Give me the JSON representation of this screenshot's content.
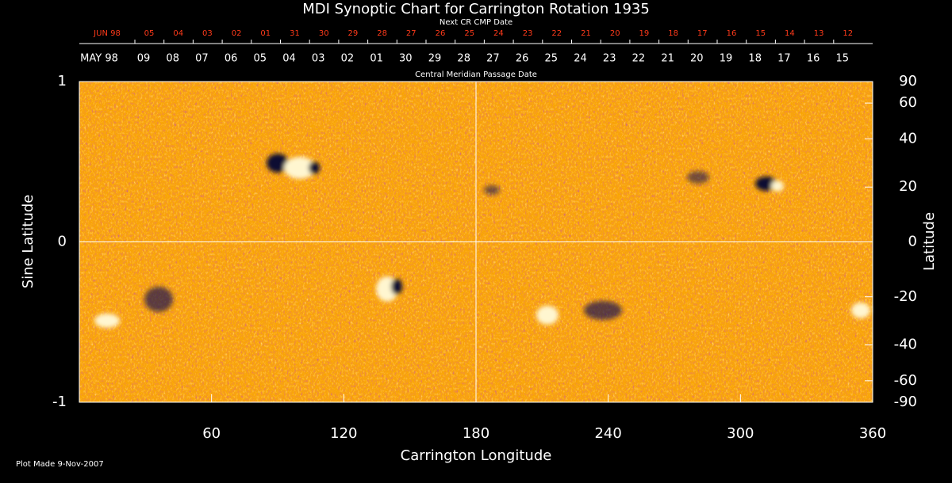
{
  "chart_data": {
    "type": "synoptic-map",
    "title": "MDI Synoptic Chart for Carrington Rotation 1935",
    "x_label": "Carrington Longitude",
    "xlim": [
      0,
      360
    ],
    "xticks": [
      60,
      120,
      180,
      240,
      300,
      360
    ],
    "y_label": "Sine Latitude",
    "ylim": [
      -1,
      1
    ],
    "yticks": [
      -1,
      0,
      1
    ],
    "y2_label": "Latitude",
    "y2lim": [
      -90,
      90
    ],
    "y2scale": "sine",
    "y2ticks": [
      90,
      60,
      40,
      20,
      0,
      -20,
      -40,
      -60,
      -90
    ],
    "top_axis": {
      "label": "Next CR CMP Date",
      "color": "#ff3a1a",
      "labels": [
        "JUN 98",
        "05",
        "04",
        "03",
        "02",
        "01",
        "31",
        "30",
        "29",
        "28",
        "27",
        "26",
        "25",
        "24",
        "23",
        "22",
        "21",
        "20",
        "19",
        "18",
        "17",
        "16",
        "15",
        "14",
        "13",
        "12"
      ]
    },
    "date_axis": {
      "label": "Central Meridian Passage Date",
      "labels": [
        "MAY 98",
        "09",
        "08",
        "07",
        "06",
        "05",
        "04",
        "03",
        "02",
        "01",
        "30",
        "29",
        "28",
        "27",
        "26",
        "25",
        "24",
        "23",
        "22",
        "21",
        "20",
        "19",
        "18",
        "17",
        "16",
        "15"
      ]
    },
    "footer": "Plot Made  9-Nov-2007"
  }
}
